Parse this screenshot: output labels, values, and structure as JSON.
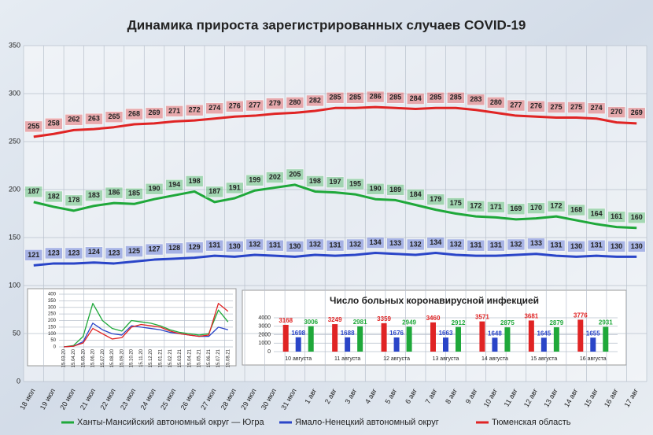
{
  "chart_data": [
    {
      "type": "line",
      "title": "Динамика прироста зарегистрированных случаев COVID-19",
      "categories": [
        "18 июл",
        "19 июл",
        "20 июл",
        "21 июл",
        "22 июл",
        "23 июл",
        "24 июл",
        "25 июл",
        "26 июл",
        "27 июл",
        "28 июл",
        "29 июл",
        "30 июл",
        "31 июл",
        "1 авг",
        "2 авг",
        "3 авг",
        "4 авг",
        "5 авг",
        "6 авг",
        "7 авг",
        "8 авг",
        "9 авг",
        "10 авг",
        "11 авг",
        "12 авг",
        "13 авг",
        "14 авг",
        "15 авг",
        "16 авг",
        "17 авг"
      ],
      "series": [
        {
          "name": "Ханты-Мансийский автономный округ — Югра",
          "color": "#1fa83a",
          "values": [
            187,
            182,
            178,
            183,
            186,
            185,
            190,
            194,
            198,
            187,
            191,
            199,
            202,
            205,
            198,
            197,
            195,
            190,
            189,
            184,
            179,
            175,
            172,
            171,
            169,
            170,
            172,
            168,
            164,
            161,
            160
          ]
        },
        {
          "name": "Ямало-Ненецкий автономный округ",
          "color": "#2a45c8",
          "values": [
            121,
            123,
            123,
            124,
            123,
            125,
            127,
            128,
            129,
            131,
            130,
            132,
            131,
            130,
            132,
            131,
            132,
            134,
            133,
            132,
            134,
            132,
            131,
            131,
            132,
            133,
            131,
            130,
            131,
            130,
            130
          ]
        },
        {
          "name": "Тюменская область",
          "color": "#e02424",
          "values": [
            255,
            258,
            262,
            263,
            265,
            268,
            269,
            271,
            272,
            274,
            276,
            277,
            279,
            280,
            282,
            285,
            285,
            286,
            285,
            284,
            285,
            285,
            283,
            280,
            277,
            276,
            275,
            275,
            274,
            270,
            269
          ]
        }
      ],
      "ylim": [
        0,
        350
      ],
      "yticks": [
        0,
        50,
        100,
        150,
        200,
        250,
        300,
        350
      ],
      "grid": true,
      "data_labels": true,
      "legend": "bottom"
    },
    {
      "type": "line",
      "categories": [
        "15.03.20",
        "15.04.20",
        "15.05.20",
        "15.06.20",
        "15.07.20",
        "15.08.20",
        "15.09.20",
        "15.10.20",
        "15.11.20",
        "15.12.20",
        "15.01.21",
        "15.02.21",
        "15.03.21",
        "15.04.21",
        "15.05.21",
        "15.06.21",
        "15.07.21",
        "15.08.21"
      ],
      "series": [
        {
          "color": "#1fa83a",
          "values": [
            0,
            10,
            80,
            330,
            200,
            140,
            120,
            200,
            190,
            180,
            160,
            130,
            110,
            100,
            90,
            100,
            280,
            190
          ]
        },
        {
          "color": "#2a45c8",
          "values": [
            0,
            5,
            40,
            180,
            130,
            100,
            90,
            160,
            150,
            140,
            130,
            110,
            100,
            90,
            80,
            80,
            150,
            130
          ]
        },
        {
          "color": "#e02424",
          "values": [
            0,
            5,
            30,
            140,
            100,
            60,
            70,
            150,
            170,
            160,
            150,
            120,
            100,
            90,
            80,
            90,
            330,
            270
          ]
        }
      ],
      "ylim": [
        0,
        400
      ],
      "yticks": [
        0,
        50,
        100,
        150,
        200,
        250,
        300,
        350,
        400
      ],
      "grid": true
    },
    {
      "type": "bar",
      "title": "Число больных коронавирусной  инфекцией",
      "categories": [
        "10 августа",
        "11 августа",
        "12 августа",
        "13 августа",
        "14 августа",
        "15 августа",
        "16 августа"
      ],
      "series": [
        {
          "color": "#e02424",
          "values": [
            3168,
            3249,
            3359,
            3460,
            3571,
            3681,
            3776
          ]
        },
        {
          "color": "#2a45c8",
          "values": [
            1698,
            1688,
            1676,
            1663,
            1648,
            1645,
            1655
          ]
        },
        {
          "color": "#1fa83a",
          "values": [
            3006,
            2981,
            2949,
            2912,
            2875,
            2879,
            2931
          ]
        }
      ],
      "ylim": [
        0,
        4000
      ],
      "yticks": [
        0,
        1000,
        2000,
        3000,
        4000
      ],
      "grid": true,
      "data_labels": true
    }
  ]
}
